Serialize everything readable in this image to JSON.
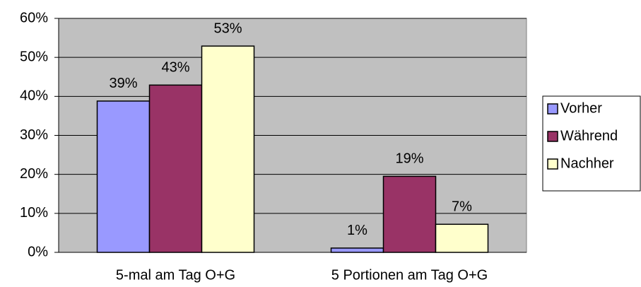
{
  "chart_data": {
    "type": "bar",
    "categories": [
      "5-mal am Tag O+G",
      "5 Portionen am Tag O+G"
    ],
    "series": [
      {
        "name": "Vorher",
        "color": "#9999ff",
        "values": [
          38.8,
          1.1
        ],
        "value_labels": [
          "39%",
          "1%"
        ]
      },
      {
        "name": "Während",
        "color": "#993366",
        "values": [
          42.9,
          19.5
        ],
        "value_labels": [
          "43%",
          "19%"
        ]
      },
      {
        "name": "Nachher",
        "color": "#ffffcc",
        "values": [
          52.9,
          7.2
        ],
        "value_labels": [
          "53%",
          "7%"
        ]
      }
    ],
    "ylim": [
      0,
      60
    ],
    "yticks": [
      {
        "value": 0,
        "label": "0%"
      },
      {
        "value": 10,
        "label": "10%"
      },
      {
        "value": 20,
        "label": "20%"
      },
      {
        "value": 30,
        "label": "30%"
      },
      {
        "value": 40,
        "label": "40%"
      },
      {
        "value": 50,
        "label": "50%"
      },
      {
        "value": 60,
        "label": "60%"
      }
    ],
    "grid": true,
    "legend": "right",
    "plot_background": "#c0c0c0"
  }
}
